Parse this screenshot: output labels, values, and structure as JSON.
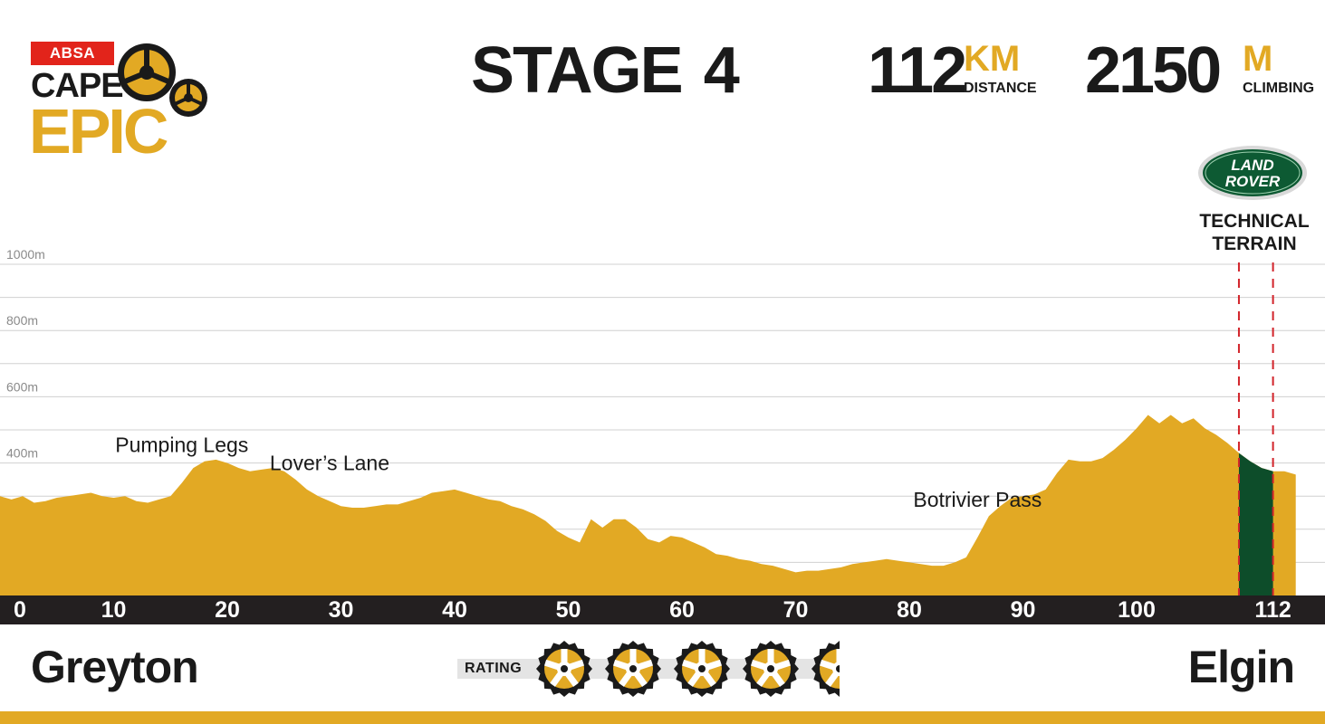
{
  "logo": {
    "sponsor": "ABSA",
    "line1": "CAPE",
    "line2": "EPIC"
  },
  "title": {
    "word": "STAGE",
    "number": "4"
  },
  "stats": {
    "distance": {
      "value": "112",
      "unit": "KM",
      "caption": "DISTANCE"
    },
    "climbing": {
      "value": "2150",
      "unit": "M",
      "caption": "CLIMBING"
    }
  },
  "technical": {
    "sponsor_line1": "LAND",
    "sponsor_line2": "ROVER",
    "line1": "TECHNICAL",
    "line2": "TERRAIN"
  },
  "start": "Greyton",
  "finish": "Elgin",
  "rating": {
    "label": "RATING",
    "value": 4.5,
    "max": 5
  },
  "colors": {
    "profile": "#e2a924",
    "technical": "#0d4d2a",
    "axis_bar": "#231f20",
    "marker": "#d2232a",
    "brand_red": "#e2241b"
  },
  "chart_data": {
    "type": "area",
    "xlabel": "",
    "ylabel": "",
    "xlim": [
      0,
      114
    ],
    "ylim": [
      0,
      1000
    ],
    "xticks": [
      0,
      10,
      20,
      30,
      40,
      50,
      60,
      70,
      80,
      90,
      100,
      112
    ],
    "yticks": [
      0,
      200,
      400,
      600,
      800,
      1000
    ],
    "ytick_labels": [
      "1000m",
      "800m",
      "600m",
      "400m"
    ],
    "grid": true,
    "x": [
      0,
      1,
      2,
      3,
      4,
      5,
      6,
      7,
      8,
      9,
      10,
      11,
      12,
      13,
      14,
      15,
      16,
      17,
      18,
      19,
      20,
      21,
      22,
      23,
      24,
      25,
      26,
      27,
      28,
      29,
      30,
      31,
      32,
      33,
      34,
      35,
      36,
      37,
      38,
      39,
      40,
      41,
      42,
      43,
      44,
      45,
      46,
      47,
      48,
      49,
      50,
      51,
      52,
      53,
      54,
      55,
      56,
      57,
      58,
      59,
      60,
      61,
      62,
      63,
      64,
      65,
      66,
      67,
      68,
      69,
      70,
      71,
      72,
      73,
      74,
      75,
      76,
      77,
      78,
      79,
      80,
      81,
      82,
      83,
      84,
      85,
      86,
      87,
      88,
      89,
      90,
      91,
      92,
      93,
      94,
      95,
      96,
      97,
      98,
      99,
      100,
      101,
      102,
      103,
      104,
      105,
      106,
      107,
      108,
      109,
      110,
      111,
      112,
      113,
      114
    ],
    "y": [
      300,
      290,
      300,
      280,
      285,
      295,
      300,
      305,
      310,
      300,
      295,
      300,
      285,
      280,
      290,
      300,
      340,
      385,
      405,
      410,
      400,
      385,
      375,
      380,
      385,
      375,
      350,
      320,
      300,
      285,
      270,
      265,
      265,
      270,
      275,
      275,
      285,
      295,
      310,
      315,
      320,
      310,
      300,
      290,
      285,
      270,
      260,
      245,
      225,
      195,
      175,
      160,
      230,
      205,
      230,
      230,
      205,
      170,
      160,
      180,
      175,
      160,
      145,
      125,
      120,
      110,
      105,
      95,
      90,
      80,
      70,
      75,
      75,
      80,
      85,
      95,
      100,
      105,
      110,
      105,
      100,
      95,
      90,
      90,
      100,
      115,
      175,
      240,
      270,
      295,
      300,
      305,
      320,
      370,
      410,
      405,
      405,
      415,
      440,
      470,
      505,
      545,
      520,
      545,
      520,
      535,
      505,
      485,
      460,
      430,
      405,
      385,
      375,
      375,
      365
    ],
    "annotations": [
      {
        "text": "Pumping Legs",
        "x": 16
      },
      {
        "text": "Lover’s Lane",
        "x": 29
      },
      {
        "text": "Botrivier Pass",
        "x": 86
      }
    ],
    "technical_section": {
      "from": 109,
      "to": 112
    }
  }
}
